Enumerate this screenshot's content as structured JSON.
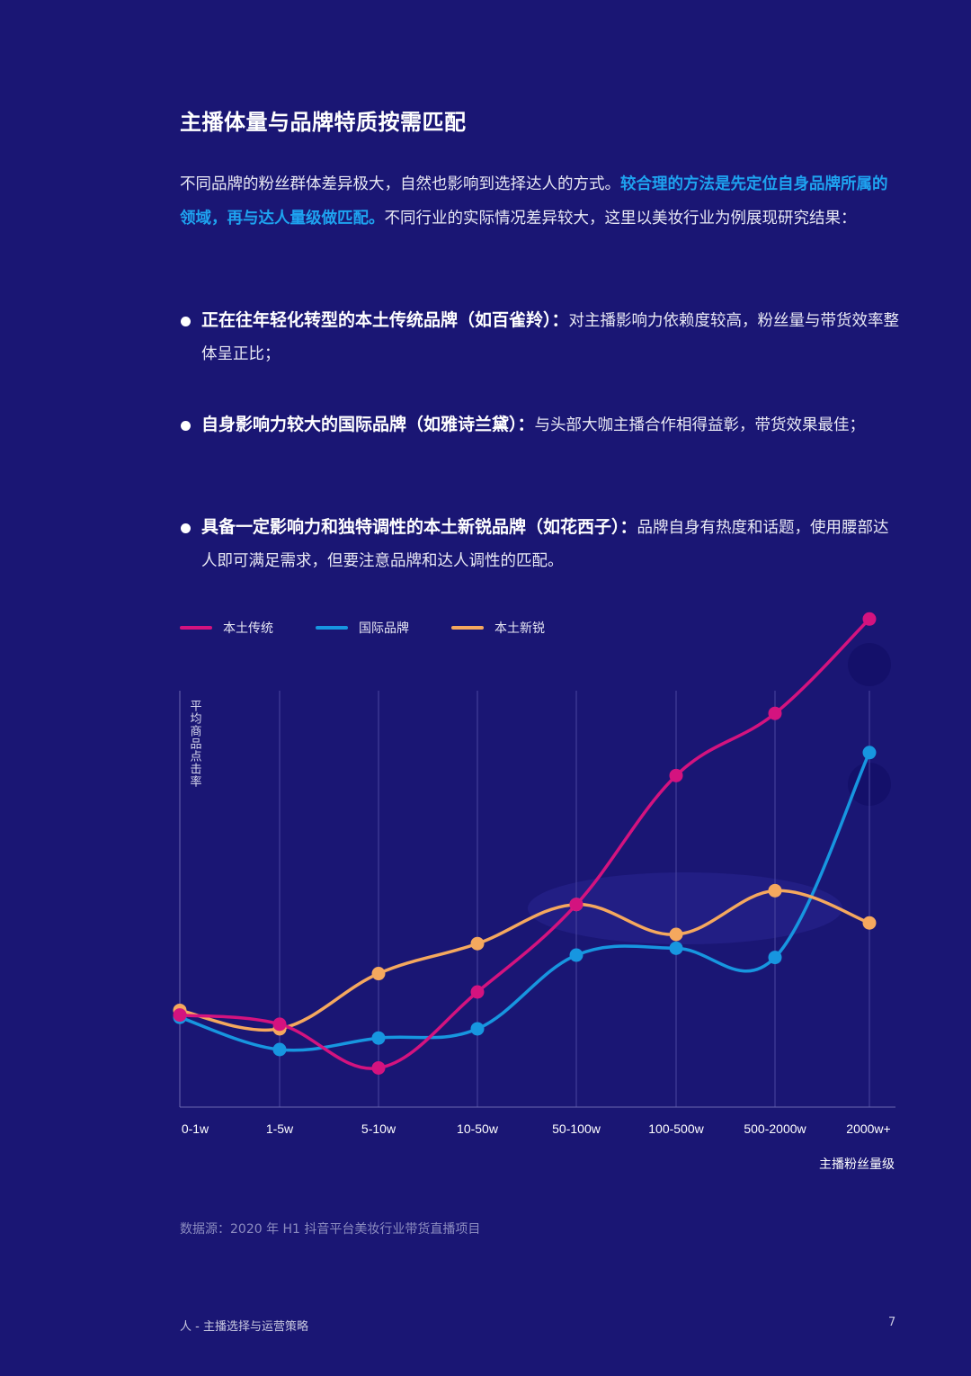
{
  "title": "主播体量与品牌特质按需匹配",
  "intro": {
    "p1": "不同品牌的粉丝群体差异极大，自然也影响到选择达人的方式。",
    "p1_highlight": "较合理的方法是先定位自身品牌所属的领域，再与达人量级做匹配。",
    "p1_rest": "不同行业的实际情况差异较大，这里以美妆行业为例展现研究结果："
  },
  "bullets": [
    {
      "bold": "正在往年轻化转型的本土传统品牌（如百雀羚）：",
      "text": "对主播影响力依赖度较高，粉丝量与带货效率整体呈正比；"
    },
    {
      "bold": "自身影响力较大的国际品牌（如雅诗兰黛）：",
      "text": "与头部大咖主播合作相得益彰，带货效果最佳；"
    },
    {
      "bold": "具备一定影响力和独特调性的本土新锐品牌（如花西子）：",
      "text": "品牌自身有热度和话题，使用腰部达人即可满足需求，但要注意品牌和达人调性的匹配。"
    }
  ],
  "chart_data": {
    "type": "line",
    "title": "",
    "xlabel": "主播粉丝量级",
    "ylabel": "平均商品点击率",
    "categories": [
      "0-1w",
      "1-5w",
      "5-10w",
      "10-50w",
      "50-100w",
      "100-500w",
      "500-2000w",
      "2000w+"
    ],
    "ylim": [
      0,
      100
    ],
    "grid": "vertical",
    "legend_position": "top-left",
    "series": [
      {
        "name": "本土传统",
        "color": "#d4137f",
        "values": [
          20,
          18,
          8.5,
          25,
          44,
          72,
          85.5,
          106
        ]
      },
      {
        "name": "国际品牌",
        "color": "#1796e0",
        "values": [
          19.5,
          12.5,
          15,
          17,
          33,
          34.5,
          32.5,
          77
        ]
      },
      {
        "name": "本土新锐",
        "color": "#f5a85e",
        "values": [
          21,
          17,
          29,
          35.5,
          44,
          37.5,
          47,
          40
        ]
      }
    ]
  },
  "source": "数据源：2020 年 H1 抖音平台美妆行业带货直播项目",
  "footer": {
    "left": "人 - 主播选择与运营策略",
    "page": "7"
  }
}
